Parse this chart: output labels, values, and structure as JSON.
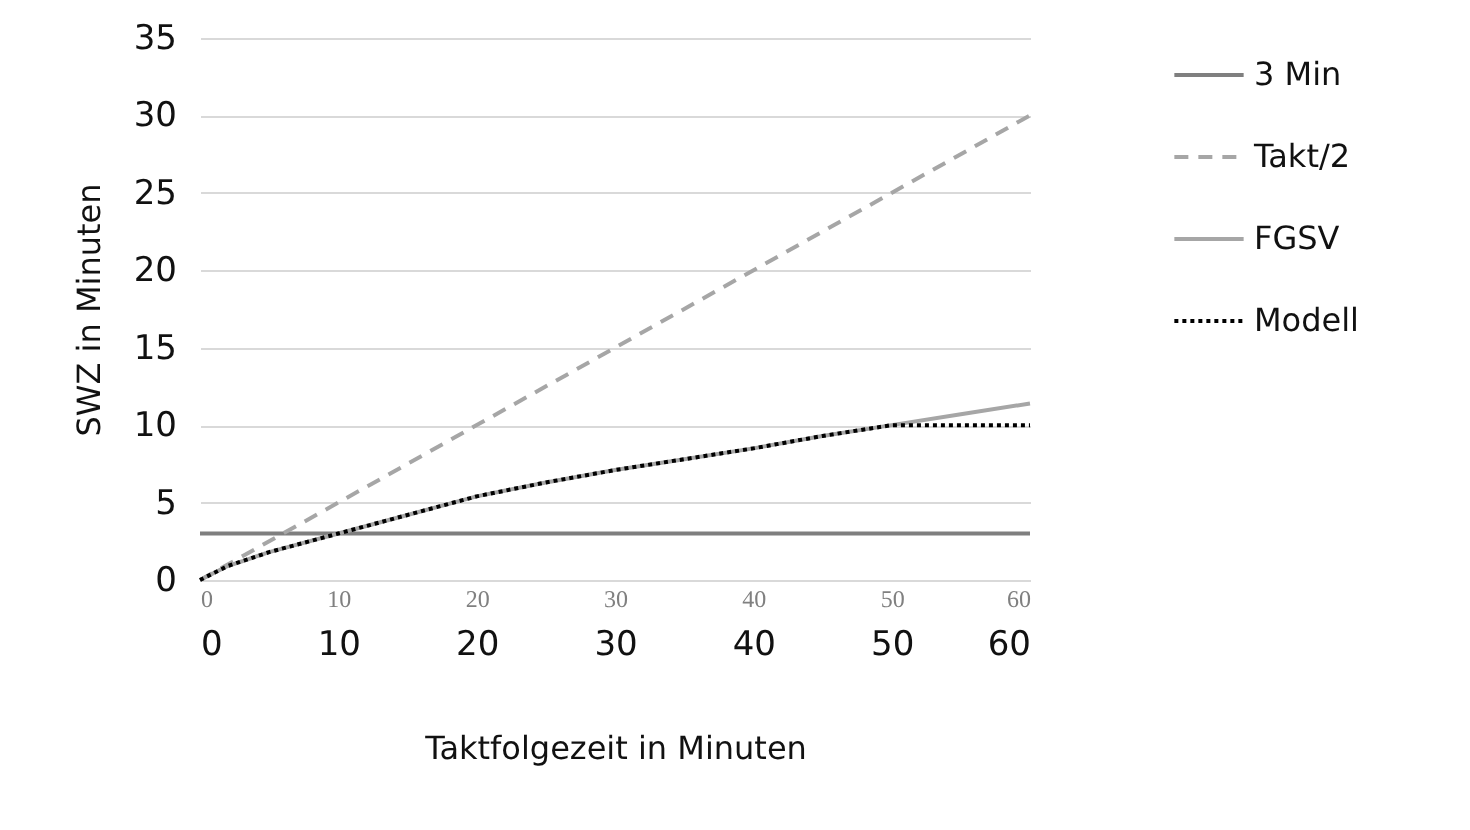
{
  "chart_data": {
    "type": "line",
    "xlabel": "Taktfolgezeit in Minuten",
    "ylabel": "SWZ in Minuten",
    "xlim": [
      0,
      60
    ],
    "xticks": [
      0,
      10,
      20,
      30,
      40,
      50,
      60
    ],
    "x2lim": [
      0,
      60
    ],
    "x2ticks": [
      0,
      10,
      20,
      30,
      40,
      50,
      60
    ],
    "ylim": [
      0,
      35
    ],
    "yticks": [
      0,
      5,
      10,
      15,
      20,
      25,
      30,
      35
    ],
    "grid": "y",
    "legend": "right",
    "marker": "none",
    "series": [
      {
        "name": "3 Min",
        "color": "#7f7f7f",
        "line_style": "solid",
        "x": [
          0,
          60
        ],
        "values": [
          3,
          3
        ]
      },
      {
        "name": "Takt/2",
        "color": "#a6a6a6",
        "line_style": "dashed",
        "x": [
          0,
          60
        ],
        "values": [
          0,
          30
        ]
      },
      {
        "name": "FGSV",
        "color": "#a6a6a6",
        "line_style": "solid",
        "x": [
          0,
          2,
          5,
          10,
          15,
          20,
          25,
          30,
          35,
          40,
          45,
          50,
          55,
          60
        ],
        "values": [
          0,
          0.9,
          1.8,
          3.0,
          4.2,
          5.4,
          6.3,
          7.1,
          7.8,
          8.5,
          9.3,
          10.0,
          10.7,
          11.4
        ]
      },
      {
        "name": "Modell",
        "color": "#000000",
        "line_style": "dotted",
        "x": [
          0,
          2,
          5,
          10,
          15,
          20,
          25,
          30,
          35,
          40,
          45,
          50,
          55,
          60
        ],
        "values": [
          0,
          0.9,
          1.8,
          3.0,
          4.2,
          5.4,
          6.3,
          7.1,
          7.8,
          8.5,
          9.3,
          10.0,
          10.0,
          10.0
        ]
      }
    ]
  }
}
